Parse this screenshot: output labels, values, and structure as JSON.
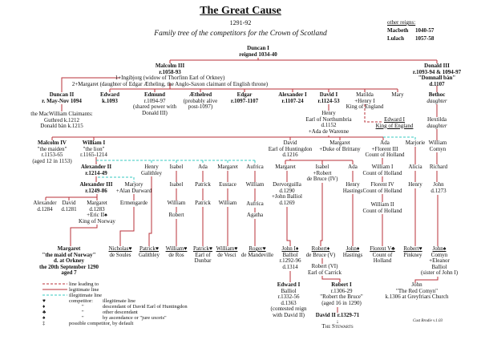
{
  "header": {
    "title": "The Great Cause",
    "years": "1291-92",
    "subtitle": "Family tree of the competitors for the Crown of Scotland"
  },
  "other_reigns": {
    "heading": "other reigns:",
    "items": [
      {
        "name": "Macbeth",
        "years": "1040-57"
      },
      {
        "name": "Lulach",
        "years": "1057-58"
      }
    ]
  },
  "colors": {
    "legitimate_line": "#b8323a",
    "illegitimate_line": "#37c9c0",
    "text": "#111111"
  },
  "nodes": {
    "duncan_i": {
      "lines": [
        "Duncan I",
        "reigned 1034-40"
      ]
    },
    "malcolm_iii": {
      "lines": [
        "Malcolm III",
        "r.1058-93",
        "1+Ingibjorg (widow of Thorfinn Earl of Orkney)",
        "2+Margaret (daughter of Edgar Ætheling, the Anglo-Saxon claimant of English throne)"
      ]
    },
    "donald_iii": {
      "lines": [
        "Donald III",
        "r.1093-94 & 1094-97",
        "\"Domnall bàn\"",
        "d.1107"
      ]
    },
    "duncan_ii": {
      "lines": [
        "Duncan II",
        "r. May-Nov 1094"
      ]
    },
    "macwilliam": {
      "lines": [
        "the MacWilliam Claimants:",
        "Guthred k.1212",
        "Donald bàn k.1215"
      ]
    },
    "edward": {
      "lines": [
        "Edward",
        "k.1093"
      ]
    },
    "edmund": {
      "lines": [
        "Edmund",
        "r.1094-97",
        "(shared power with",
        "Donald III)"
      ]
    },
    "aethelred": {
      "lines": [
        "Æthelred",
        "(probably alive",
        "post-1097)"
      ]
    },
    "edgar": {
      "lines": [
        "Edgar",
        "r.1097-1107"
      ]
    },
    "alexander_i": {
      "lines": [
        "Alexander I",
        "r.1107-24"
      ]
    },
    "david_i": {
      "lines": [
        "David I",
        "r.1124-53"
      ]
    },
    "matilda": {
      "lines": [
        "Matilda",
        "+Henry I",
        "King of England"
      ]
    },
    "mary": {
      "lines": [
        "Mary"
      ]
    },
    "bethoc": {
      "lines": [
        "Bethoc",
        "daughter"
      ]
    },
    "henry_northumbria": {
      "lines": [
        "Henry",
        "Earl of Northumbria",
        "d.1152",
        "+Ada de Warenne"
      ]
    },
    "edward_i_england": {
      "lines": [
        "Edward I",
        "King of England"
      ]
    },
    "hextilda": {
      "lines": [
        "Hextilda",
        "daughter"
      ]
    },
    "malcolm_iv": {
      "lines": [
        "Malcolm IV",
        "\"the maiden\"",
        "r.1153-65",
        "(aged 12 in 1153)"
      ]
    },
    "william_i": {
      "lines": [
        "William I",
        "\"the lion\"",
        "r.1165-1214"
      ]
    },
    "david_huntingdon": {
      "lines": [
        "David",
        "Earl of Huntingdon",
        "d.1216"
      ]
    },
    "margaret_brittany": {
      "lines": [
        "Margaret",
        "+Duke of Brittany"
      ]
    },
    "ada_holland": {
      "lines": [
        "Ada",
        "+Florent III",
        "Count of Holland"
      ]
    },
    "marjorie": {
      "lines": [
        "Marjorie"
      ]
    },
    "william_comyn": {
      "lines": [
        "William",
        "Comyn"
      ]
    },
    "alexander_ii": {
      "lines": [
        "Alexander II",
        "r.1214-49"
      ]
    },
    "henry_galithley": {
      "lines": [
        "Henry",
        "Galithley"
      ]
    },
    "isabel_w": {
      "lines": [
        "Isabel"
      ]
    },
    "ada_w": {
      "lines": [
        "Ada"
      ]
    },
    "margaret_w": {
      "lines": [
        "Margaret"
      ]
    },
    "aufrica_w": {
      "lines": [
        "Aufrica"
      ]
    },
    "margaret_d": {
      "lines": [
        "Margaret"
      ]
    },
    "isabel_d": {
      "lines": [
        "Isabel",
        "+Robert",
        "de Bruce (IV)"
      ]
    },
    "ada_d": {
      "lines": [
        "Ada"
      ]
    },
    "william_i_holland": {
      "lines": [
        "William I",
        "Count of Holland"
      ]
    },
    "alicia": {
      "lines": [
        "Alicia"
      ]
    },
    "richard": {
      "lines": [
        "Richard"
      ]
    },
    "alexander_iii": {
      "lines": [
        "Alexander III",
        "r.1249-86"
      ]
    },
    "marjory": {
      "lines": [
        "Marjory",
        "+Alan Durward"
      ]
    },
    "isabel_2": {
      "lines": [
        "Isabel"
      ]
    },
    "patrick_1": {
      "lines": [
        "Patrick"
      ]
    },
    "eustace": {
      "lines": [
        "Eustace"
      ]
    },
    "william_a": {
      "lines": [
        "William"
      ]
    },
    "dervorguilla": {
      "lines": [
        "Dervorguilla",
        "d.1290",
        "+John Balliol",
        "d.1269"
      ]
    },
    "henry_hastings": {
      "lines": [
        "Henry",
        "Hastings"
      ]
    },
    "florent_iv": {
      "lines": [
        "Florent IV",
        "Count of Holland"
      ]
    },
    "henry_m": {
      "lines": [
        "Henry"
      ]
    },
    "john_r": {
      "lines": [
        "John",
        "d.1273"
      ]
    },
    "alexander_d1284": {
      "lines": [
        "Alexander",
        "d.1284"
      ]
    },
    "david_d1281": {
      "lines": [
        "David",
        "d.1281"
      ]
    },
    "margaret_norway": {
      "lines": [
        "Margaret",
        "d.1283",
        "+Eric II♠",
        "King of Norway"
      ]
    },
    "ermengarde": {
      "lines": [
        "Ermengarde"
      ]
    },
    "william_i2": {
      "lines": [
        "William"
      ]
    },
    "patrick_2": {
      "lines": [
        "Patrick"
      ]
    },
    "william_e": {
      "lines": [
        "William"
      ]
    },
    "aufrica_2": {
      "lines": [
        "Aufrica"
      ]
    },
    "william_iii_holland": {
      "lines": [
        "William II",
        "Count of Holland"
      ]
    },
    "robert_i2": {
      "lines": [
        "Robert"
      ]
    },
    "agatha": {
      "lines": [
        "Agatha"
      ]
    },
    "maid_of_norway": {
      "lines": [
        "Margaret",
        "\"the maid of Norway\"",
        "d. at Orkney",
        "the 20th September 1290",
        "aged 7"
      ]
    },
    "nicholas": {
      "lines": [
        "Nicholas♥",
        "de Soules"
      ]
    },
    "patrick_galithley": {
      "lines": [
        "Patrick♥",
        "Galithley"
      ]
    },
    "william_ros": {
      "lines": [
        "William♥",
        "de Ros"
      ]
    },
    "patrick_dunbar": {
      "lines": [
        "Patrick♥",
        "Earl of",
        "Dunbar"
      ]
    },
    "william_vesci": {
      "lines": [
        "William♥",
        "de Vesci"
      ]
    },
    "roger": {
      "lines": [
        "Roger♥",
        "de Mandeville"
      ]
    },
    "john_balliol": {
      "lines": [
        "John I♦",
        "Balliol",
        "r.1292-96",
        "d.1314"
      ]
    },
    "robert_v": {
      "lines": [
        "Robert♦",
        "de Bruce (V)"
      ]
    },
    "john_hastings": {
      "lines": [
        "John♦",
        "Hastings"
      ]
    },
    "florent_v": {
      "lines": [
        "Florent V♣",
        "Count of",
        "Holland"
      ]
    },
    "robert_pinkney": {
      "lines": [
        "Robert♥",
        "Pinkney"
      ]
    },
    "john_comyn": {
      "lines": [
        "John♠",
        "Comyn",
        "+Eleanor",
        "Balliol",
        "(sister of John I)"
      ]
    },
    "robert_vi": {
      "lines": [
        "Robert (VI)",
        "Earl of Carrick"
      ]
    },
    "edward_balliol": {
      "lines": [
        "Edward I",
        "Balliol",
        "r.1332-56",
        "d.1363",
        "(contested reign",
        "with David II)"
      ]
    },
    "robert_bruce": {
      "lines": [
        "Robert I",
        "r.1306-29",
        "\"Robert the Bruce\"",
        "(aged 16 in 1290)"
      ]
    },
    "red_comyn": {
      "lines": [
        "John",
        "\"The Red Comyn\"",
        "k.1306 at Greyfriars Church"
      ]
    },
    "david_ii": {
      "lines": [
        "David II r.1329-71",
        "↓"
      ]
    },
    "stewarts": {
      "lines": [
        "The Stewarts"
      ]
    }
  },
  "legend": {
    "lines": [
      {
        "style": "dashed-red",
        "label": "line leading to"
      },
      {
        "style": "solid-red",
        "label": "legitimate line"
      },
      {
        "style": "dashed-cyan",
        "label": "illegitimate line"
      }
    ],
    "symbols": [
      {
        "symbol": "♥",
        "label": "competitor:",
        "detail": "illegitimate line"
      },
      {
        "symbol": "♦",
        "label": "\"",
        "detail": "descendant of David Earl of Huntingdon"
      },
      {
        "symbol": "♣",
        "label": "\"",
        "detail": "other descendant"
      },
      {
        "symbol": "♠",
        "label": "\"",
        "detail": "by ascendance or \"jure uxoris\""
      },
      {
        "symbol": "‡",
        "label": "possible competitor,  by default",
        "detail": ""
      }
    ]
  },
  "credit": "Cust Brodie    v.1.03"
}
